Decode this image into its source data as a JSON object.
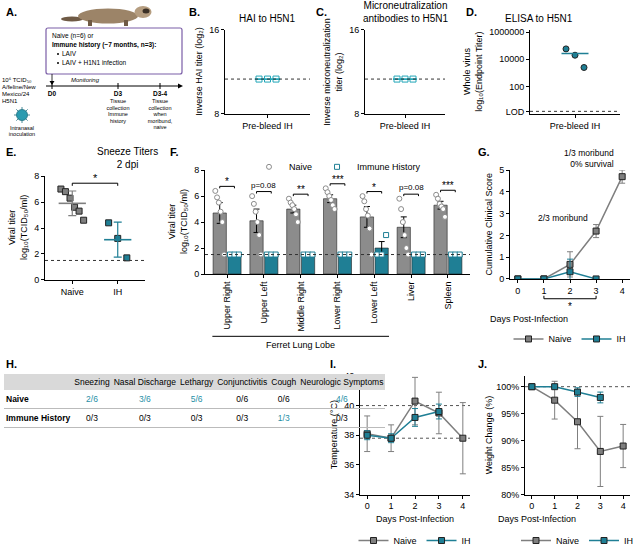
{
  "chart_data": [
    {
      "panel": "B.",
      "type": "scatter",
      "title": "HAI to H5N1",
      "y_label": "Inverse HAI titer (log₂)",
      "categories": [
        "Pre-bleed IH"
      ],
      "values": [
        [
          11.3,
          11.3,
          11.3
        ]
      ],
      "mean": [
        11.3
      ],
      "lod": 11.3,
      "color": "#22a6b8",
      "marker": "square-open",
      "ylim": [
        8,
        16
      ],
      "yticks": [
        8,
        16
      ]
    },
    {
      "panel": "C.",
      "type": "scatter",
      "title": "Microneutralization antibodies to H5N1",
      "y_label": "Inverse microneutralization titer (log₂)",
      "categories": [
        "Pre-bleed IH"
      ],
      "values": [
        [
          11.3,
          11.3,
          11.3
        ]
      ],
      "mean": [
        11.3
      ],
      "lod": 11.3,
      "color": "#22a6b8",
      "marker": "square-open",
      "ylim": [
        8,
        16
      ],
      "yticks": [
        8,
        16
      ]
    },
    {
      "panel": "D.",
      "type": "scatter",
      "title": "ELISA to H5N1",
      "y_label": "Whole virus log₁₀(Endpoint Titer)",
      "log": "y",
      "categories": [
        "Pre-bleed IH"
      ],
      "values": [
        [
          58000,
          20000,
          2500
        ]
      ],
      "mean": [
        27000
      ],
      "lod": 1.5,
      "color": "#1f7f95",
      "marker": "circle",
      "ylim": [
        1,
        1500000
      ],
      "yticks": [
        {
          "value": 1.5,
          "label": "LOD"
        },
        100,
        10000,
        1000000
      ]
    },
    {
      "panel": "E.",
      "type": "scatter",
      "title": "Sneeze Titers 2 dpi",
      "y_label": "Viral titer log₁₀(TCID₅₀/ml)",
      "categories": [
        "Naive",
        "IH"
      ],
      "values": [
        [
          7.0,
          6.8,
          6.3,
          5.6,
          5.3,
          4.6
        ],
        [
          4.4,
          3.2,
          1.7
        ]
      ],
      "mean": [
        5.9,
        3.1
      ],
      "sd": [
        0.95,
        1.35
      ],
      "colors": [
        "#7f7f7f",
        "#1f7f95"
      ],
      "marker": "square",
      "lod": 1.5,
      "significance": "*",
      "ylim": [
        0,
        8
      ],
      "yticks": [
        0,
        2,
        4,
        6,
        8
      ]
    },
    {
      "panel": "F.",
      "type": "bar",
      "y_label": "Viral titer log₁₀(TCID₅₀/ml)",
      "categories": [
        "Upper Right",
        "Upper Left",
        "Middle Right",
        "Lower Right",
        "Lower Left",
        "Liver",
        "Spleen"
      ],
      "group": {
        "label": "Ferret Lung Lobe",
        "categories": [
          "Upper Right",
          "Upper Left",
          "Middle Right",
          "Lower Right",
          "Lower Left"
        ]
      },
      "series": [
        {
          "name": "Naive",
          "color": "#8c8c8c",
          "marker": "circle-open",
          "values": [
            4.7,
            4.1,
            5.0,
            5.8,
            4.4,
            3.6,
            5.3
          ],
          "errors": [
            0.8,
            0.9,
            0.3,
            0.3,
            0.8,
            0.8,
            0.3
          ],
          "points": [
            [
              6.4,
              5.9,
              5.5,
              4.8,
              4.0,
              1.5
            ],
            [
              6.0,
              5.4,
              4.8,
              4.0,
              3.0,
              1.5
            ],
            [
              5.8,
              5.5,
              5.3,
              5.0,
              4.6,
              4.0
            ],
            [
              6.6,
              6.3,
              6.0,
              5.7,
              5.3,
              5.0
            ],
            [
              6.0,
              5.6,
              5.0,
              4.5,
              3.5,
              1.5
            ],
            [
              5.8,
              5.0,
              4.0,
              3.0,
              2.0,
              1.5
            ],
            [
              6.1,
              5.8,
              5.4,
              5.2,
              5.0,
              4.4
            ]
          ]
        },
        {
          "name": "Immune History",
          "color": "#1f7f95",
          "marker": "square-open",
          "values": [
            1.5,
            1.5,
            1.5,
            1.5,
            2.0,
            1.5,
            1.5
          ],
          "errors": [
            0,
            0,
            0,
            0,
            0.5,
            0,
            0
          ],
          "points": [
            [
              1.5,
              1.5,
              1.5
            ],
            [
              1.5,
              1.5,
              1.5
            ],
            [
              1.5,
              1.5,
              1.5
            ],
            [
              1.5,
              1.5,
              1.5
            ],
            [
              1.5,
              1.5,
              3.0
            ],
            [
              1.5,
              1.5,
              1.5
            ],
            [
              1.5,
              1.5,
              1.5
            ]
          ]
        }
      ],
      "significance": [
        "*",
        "p=0.08",
        "**",
        "***",
        "*",
        "p=0.08",
        "***"
      ],
      "lod": 1.5,
      "legend": "top",
      "ylim": [
        0,
        8
      ],
      "yticks": [
        0,
        2,
        4,
        6,
        8
      ]
    },
    {
      "panel": "G.",
      "type": "line",
      "x_label": "Days Post-Infection",
      "y_label": "Cumulative Clinical Score",
      "x": [
        0,
        1,
        2,
        3,
        4
      ],
      "series": [
        {
          "name": "Naive",
          "color": "#7f7f7f",
          "marker": "square",
          "values": [
            0,
            0,
            0.67,
            2.2,
            4.7
          ],
          "errors": [
            0,
            0,
            0.58,
            0.3,
            0.3
          ]
        },
        {
          "name": "IH",
          "color": "#1f7f95",
          "marker": "square",
          "values": [
            0,
            0,
            0.33,
            0,
            null
          ],
          "errors": [
            0,
            0,
            0.58,
            0,
            null
          ]
        }
      ],
      "annotations": [
        "1/3 moribund 0% survival",
        "2/3 moribund"
      ],
      "significance": {
        "text": "*",
        "from": 1,
        "to": 3
      },
      "legend": "bottom",
      "xlim": [
        -0.3,
        4.3
      ],
      "xticks": [
        0,
        1,
        2,
        3,
        4
      ],
      "ylim": [
        0,
        5
      ],
      "yticks": [
        0,
        1,
        2,
        3,
        4,
        5
      ]
    },
    {
      "panel": "I.",
      "type": "line",
      "x_label": "Days Post-Infection",
      "y_label": "Temperature (°C)",
      "x": [
        0,
        1,
        2,
        3,
        4
      ],
      "series": [
        {
          "name": "Naive",
          "color": "#7f7f7f",
          "marker": "square",
          "values": [
            38.1,
            37.8,
            40.3,
            39.5,
            37.8
          ],
          "errors": [
            1.2,
            0.9,
            1.6,
            1.4,
            2.4
          ]
        },
        {
          "name": "IH",
          "color": "#1f7f95",
          "marker": "square",
          "values": [
            38.0,
            37.8,
            39.2,
            39.6,
            null
          ],
          "errors": [
            0.3,
            0.3,
            0.6,
            0.5,
            null
          ]
        }
      ],
      "reference_lines": [
        40,
        37.8
      ],
      "legend": "bottom",
      "xlim": [
        -0.3,
        4.3
      ],
      "xticks": [
        0,
        1,
        2,
        3,
        4
      ],
      "ylim": [
        34,
        42
      ],
      "yticks": [
        34,
        36,
        38,
        40,
        42
      ]
    },
    {
      "panel": "J.",
      "type": "line",
      "x_label": "Days Post-Infection",
      "y_label": "Weight Change (%)",
      "x": [
        0,
        1,
        2,
        3,
        4
      ],
      "series": [
        {
          "name": "Naive",
          "color": "#7f7f7f",
          "marker": "square",
          "values": [
            100,
            97.5,
            93.5,
            88,
            89
          ],
          "errors": [
            0,
            3.5,
            5,
            6.5,
            4
          ]
        },
        {
          "name": "IH",
          "color": "#1f7f95",
          "marker": "square",
          "values": [
            100,
            100,
            99,
            98,
            null
          ],
          "errors": [
            0,
            0.3,
            0.8,
            1,
            null
          ]
        }
      ],
      "reference_lines": [
        100
      ],
      "legend": "bottom",
      "xlim": [
        -0.3,
        4.3
      ],
      "xticks": [
        0,
        1,
        2,
        3,
        4
      ],
      "ylim": [
        80,
        102
      ],
      "yticks": [
        {
          "value": 80,
          "label": "80%"
        },
        {
          "value": 85,
          "label": "85%"
        },
        {
          "value": 90,
          "label": "90%"
        },
        {
          "value": 95,
          "label": "95%"
        },
        {
          "value": 100,
          "label": "100%"
        }
      ]
    }
  ],
  "diagram": {
    "panel": "A.",
    "cohorts": [
      "Naive (n=6) or",
      "Immune history (~7 months, n=3):"
    ],
    "regimens": [
      "LAIV",
      "LAIV + H1N1 infection"
    ],
    "inoculum": "10⁶ TCID₅₀ A/feline/New Mexico/24 H5N1",
    "route": "Intranasal inoculation",
    "timeline": [
      {
        "day": "D0"
      },
      {
        "label": "Monitoring"
      },
      {
        "day": "D3",
        "label": "Tissue collection Immune history"
      },
      {
        "day": "D3-4",
        "label": "Tissue collection when moribund, naive"
      }
    ]
  },
  "table": {
    "panel": "H.",
    "columns": [
      "Sneezing",
      "Nasal Discharge",
      "Lethargy",
      "Conjunctivitis",
      "Cough",
      "Neurologic Symptoms"
    ],
    "rows": [
      {
        "label": "Naive",
        "cells": [
          "2/6",
          "3/6",
          "5/6",
          "0/6",
          "0/6",
          "4/6"
        ]
      },
      {
        "label": "Immune History",
        "cells": [
          "0/3",
          "0/3",
          "0/3",
          "0/3",
          "1/3",
          "0/3"
        ]
      }
    ]
  }
}
